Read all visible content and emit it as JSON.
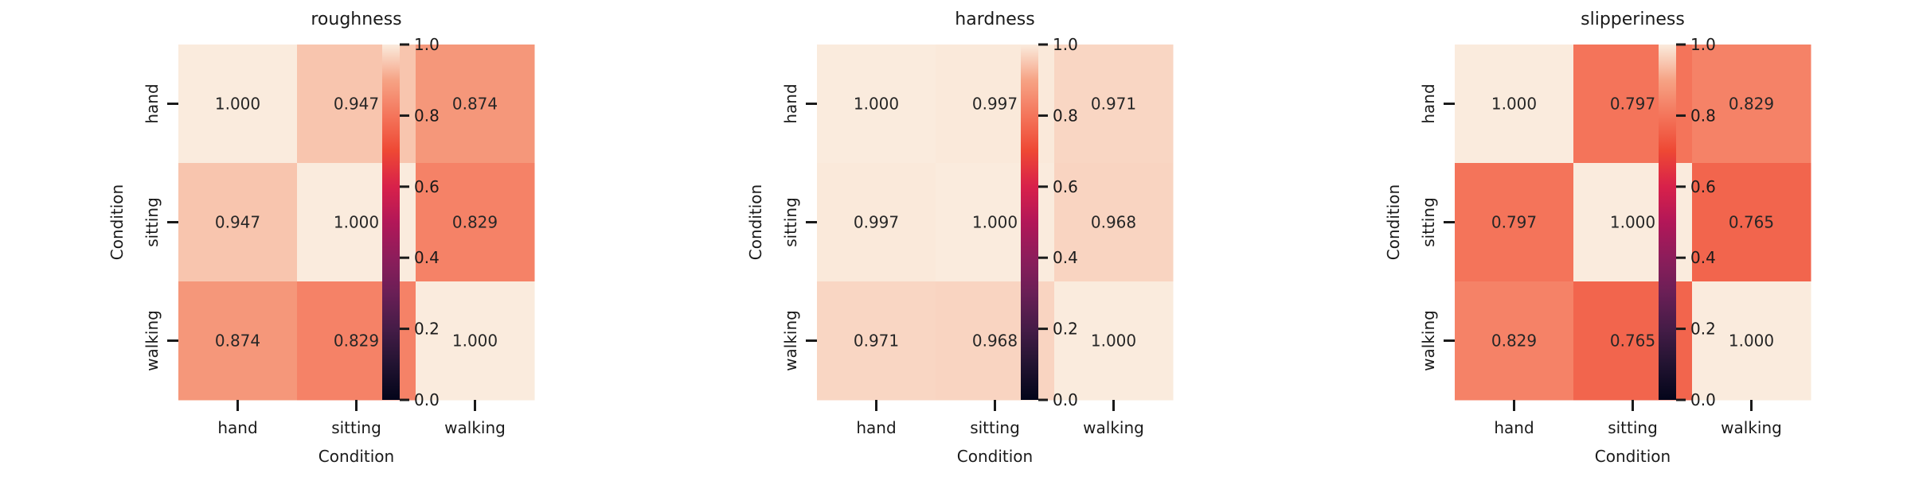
{
  "chart_data": [
    {
      "type": "heatmap",
      "title": "roughness",
      "xlabel": "Condition",
      "ylabel": "Condition",
      "x_categories": [
        "hand",
        "sitting",
        "walking"
      ],
      "y_categories": [
        "hand",
        "sitting",
        "walking"
      ],
      "values": [
        [
          1.0,
          0.947,
          0.874
        ],
        [
          0.947,
          1.0,
          0.829
        ],
        [
          0.874,
          0.829,
          1.0
        ]
      ],
      "value_labels": [
        [
          "1.000",
          "0.947",
          "0.874"
        ],
        [
          "0.947",
          "1.000",
          "0.829"
        ],
        [
          "0.874",
          "0.829",
          "1.000"
        ]
      ],
      "colorbar_range": [
        0,
        1
      ],
      "colorbar_ticks": [
        "0.0",
        "0.2",
        "0.4",
        "0.6",
        "0.8",
        "1.0"
      ],
      "colormap": "rocket"
    },
    {
      "type": "heatmap",
      "title": "hardness",
      "xlabel": "Condition",
      "ylabel": "Condition",
      "x_categories": [
        "hand",
        "sitting",
        "walking"
      ],
      "y_categories": [
        "hand",
        "sitting",
        "walking"
      ],
      "values": [
        [
          1.0,
          0.997,
          0.971
        ],
        [
          0.997,
          1.0,
          0.968
        ],
        [
          0.971,
          0.968,
          1.0
        ]
      ],
      "value_labels": [
        [
          "1.000",
          "0.997",
          "0.971"
        ],
        [
          "0.997",
          "1.000",
          "0.968"
        ],
        [
          "0.971",
          "0.968",
          "1.000"
        ]
      ],
      "colorbar_range": [
        0,
        1
      ],
      "colorbar_ticks": [
        "0.0",
        "0.2",
        "0.4",
        "0.6",
        "0.8",
        "1.0"
      ],
      "colormap": "rocket"
    },
    {
      "type": "heatmap",
      "title": "slipperiness",
      "xlabel": "Condition",
      "ylabel": "Condition",
      "x_categories": [
        "hand",
        "sitting",
        "walking"
      ],
      "y_categories": [
        "hand",
        "sitting",
        "walking"
      ],
      "values": [
        [
          1.0,
          0.797,
          0.829
        ],
        [
          0.797,
          1.0,
          0.765
        ],
        [
          0.829,
          0.765,
          1.0
        ]
      ],
      "value_labels": [
        [
          "1.000",
          "0.797",
          "0.829"
        ],
        [
          "0.797",
          "1.000",
          "0.765"
        ],
        [
          "0.829",
          "0.765",
          "1.000"
        ]
      ],
      "colorbar_range": [
        0,
        1
      ],
      "colorbar_ticks": [
        "0.0",
        "0.2",
        "0.4",
        "0.6",
        "0.8",
        "1.0"
      ],
      "colormap": "rocket"
    }
  ]
}
